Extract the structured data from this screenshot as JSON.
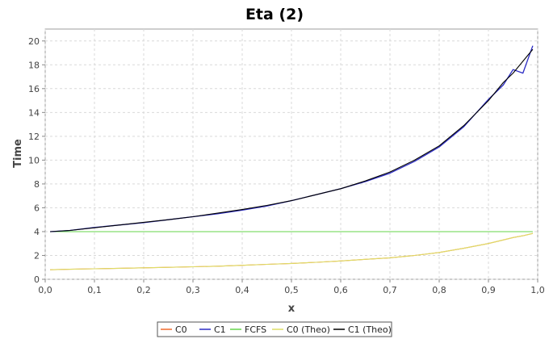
{
  "chart_data": {
    "type": "line",
    "title": "Eta (2)",
    "xlabel": "x",
    "ylabel": "Time",
    "xlim": [
      0.0,
      1.0
    ],
    "ylim": [
      0,
      21
    ],
    "x_ticks": [
      "0,0",
      "0,1",
      "0,2",
      "0,3",
      "0,4",
      "0,5",
      "0,6",
      "0,7",
      "0,8",
      "0,9",
      "1,0"
    ],
    "x_tick_values": [
      0.0,
      0.1,
      0.2,
      0.3,
      0.4,
      0.5,
      0.6,
      0.7,
      0.8,
      0.9,
      1.0
    ],
    "y_ticks": [
      "0",
      "2",
      "4",
      "6",
      "8",
      "10",
      "12",
      "14",
      "16",
      "18",
      "20"
    ],
    "y_tick_values": [
      0,
      2,
      4,
      6,
      8,
      10,
      12,
      14,
      16,
      18,
      20
    ],
    "grid": true,
    "legend_position": "bottom",
    "x": [
      0.01,
      0.05,
      0.1,
      0.15,
      0.2,
      0.25,
      0.3,
      0.35,
      0.4,
      0.45,
      0.5,
      0.55,
      0.6,
      0.65,
      0.7,
      0.75,
      0.8,
      0.85,
      0.9,
      0.93,
      0.95,
      0.97,
      0.99
    ],
    "series": [
      {
        "name": "C0",
        "color": "#f06a2c",
        "values": [
          0.8,
          0.84,
          0.88,
          0.92,
          0.96,
          1.0,
          1.05,
          1.1,
          1.17,
          1.25,
          1.33,
          1.42,
          1.54,
          1.67,
          1.8,
          2.0,
          2.25,
          2.6,
          3.0,
          3.3,
          3.5,
          3.65,
          3.85
        ]
      },
      {
        "name": "C1",
        "color": "#2c2cc4",
        "values": [
          4.0,
          4.1,
          4.35,
          4.55,
          4.75,
          5.0,
          5.25,
          5.5,
          5.8,
          6.15,
          6.6,
          7.1,
          7.6,
          8.2,
          8.9,
          9.9,
          11.1,
          12.8,
          15.1,
          16.3,
          17.6,
          17.3,
          19.6
        ]
      },
      {
        "name": "FCFS",
        "color": "#66d44a",
        "values": [
          4.0,
          4.0,
          4.0,
          4.0,
          4.0,
          4.0,
          4.0,
          4.0,
          4.0,
          4.0,
          4.0,
          4.0,
          4.0,
          4.0,
          4.0,
          4.0,
          4.0,
          4.0,
          4.0,
          4.0,
          4.0,
          4.0,
          4.0
        ]
      },
      {
        "name": "C0 (Theo)",
        "color": "#dede66",
        "values": [
          0.8,
          0.84,
          0.88,
          0.92,
          0.96,
          1.0,
          1.05,
          1.1,
          1.17,
          1.25,
          1.33,
          1.42,
          1.54,
          1.67,
          1.8,
          2.0,
          2.25,
          2.6,
          3.0,
          3.3,
          3.5,
          3.65,
          3.85
        ]
      },
      {
        "name": "C1 (Theo)",
        "color": "#000000",
        "values": [
          4.0,
          4.1,
          4.32,
          4.55,
          4.78,
          5.0,
          5.25,
          5.55,
          5.85,
          6.2,
          6.6,
          7.1,
          7.6,
          8.25,
          9.0,
          10.0,
          11.2,
          12.9,
          15.0,
          16.5,
          17.3,
          18.3,
          19.3
        ]
      }
    ]
  }
}
